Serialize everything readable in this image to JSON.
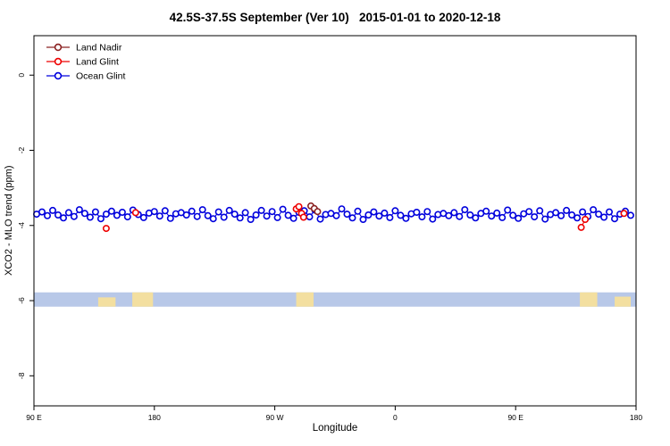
{
  "chart_data": {
    "type": "line",
    "title": "42.5S-37.5S September (Ver 10)   2015-01-01 to 2020-12-18",
    "xlabel": "Longitude",
    "ylabel": "XCO2 - MLO trend (ppm)",
    "xlim": [
      90,
      540
    ],
    "ylim": [
      -8.8,
      1.05
    ],
    "grid": false,
    "legend_position": "top-left",
    "xticks": [
      {
        "v": 90,
        "label": "90 E"
      },
      {
        "v": 180,
        "label": "180"
      },
      {
        "v": 270,
        "label": "90 W"
      },
      {
        "v": 360,
        "label": "0"
      },
      {
        "v": 450,
        "label": "90 E"
      },
      {
        "v": 540,
        "label": "180"
      }
    ],
    "yticks": [
      {
        "v": 0,
        "label": "0"
      },
      {
        "v": -2,
        "label": "-2"
      },
      {
        "v": -4,
        "label": "-4"
      },
      {
        "v": -6,
        "label": "-6"
      },
      {
        "v": -8,
        "label": "-8"
      }
    ],
    "series": [
      {
        "name": "Land Nadir",
        "color": "#8b2323",
        "points": [
          [
            297,
            -3.48
          ],
          [
            299.5,
            -3.55
          ],
          [
            302,
            -3.63
          ]
        ]
      },
      {
        "name": "Land Glint",
        "color": "#ee0000",
        "points": [
          [
            144,
            -4.08
          ],
          [
            166,
            -3.66
          ],
          [
            286,
            -3.56
          ],
          [
            288,
            -3.5
          ],
          [
            290,
            -3.68
          ],
          [
            291.5,
            -3.78
          ],
          [
            499,
            -4.05
          ],
          [
            502,
            -3.84
          ],
          [
            531,
            -3.68
          ]
        ]
      },
      {
        "name": "Ocean Glint",
        "color": "#0000dd",
        "points": [
          [
            92,
            -3.7
          ],
          [
            96,
            -3.64
          ],
          [
            100,
            -3.74
          ],
          [
            104,
            -3.6
          ],
          [
            108,
            -3.72
          ],
          [
            112,
            -3.8
          ],
          [
            116,
            -3.66
          ],
          [
            120,
            -3.76
          ],
          [
            124,
            -3.58
          ],
          [
            128,
            -3.68
          ],
          [
            132,
            -3.78
          ],
          [
            136,
            -3.64
          ],
          [
            140,
            -3.82
          ],
          [
            144,
            -3.7
          ],
          [
            148,
            -3.62
          ],
          [
            152,
            -3.73
          ],
          [
            156,
            -3.65
          ],
          [
            160,
            -3.77
          ],
          [
            164,
            -3.59
          ],
          [
            168,
            -3.71
          ],
          [
            172,
            -3.79
          ],
          [
            176,
            -3.67
          ],
          [
            180,
            -3.63
          ],
          [
            184,
            -3.75
          ],
          [
            188,
            -3.61
          ],
          [
            192,
            -3.81
          ],
          [
            196,
            -3.69
          ],
          [
            200,
            -3.66
          ],
          [
            204,
            -3.72
          ],
          [
            208,
            -3.62
          ],
          [
            212,
            -3.76
          ],
          [
            216,
            -3.58
          ],
          [
            220,
            -3.74
          ],
          [
            224,
            -3.82
          ],
          [
            228,
            -3.64
          ],
          [
            232,
            -3.78
          ],
          [
            236,
            -3.6
          ],
          [
            240,
            -3.7
          ],
          [
            244,
            -3.8
          ],
          [
            248,
            -3.66
          ],
          [
            252,
            -3.84
          ],
          [
            256,
            -3.72
          ],
          [
            260,
            -3.6
          ],
          [
            264,
            -3.75
          ],
          [
            268,
            -3.63
          ],
          [
            272,
            -3.79
          ],
          [
            276,
            -3.57
          ],
          [
            280,
            -3.73
          ],
          [
            284,
            -3.81
          ],
          [
            288,
            -3.65
          ],
          [
            292,
            -3.61
          ],
          [
            296,
            -3.77
          ],
          [
            300,
            -3.59
          ],
          [
            304,
            -3.83
          ],
          [
            308,
            -3.71
          ],
          [
            312,
            -3.68
          ],
          [
            316,
            -3.74
          ],
          [
            320,
            -3.56
          ],
          [
            324,
            -3.7
          ],
          [
            328,
            -3.8
          ],
          [
            332,
            -3.62
          ],
          [
            336,
            -3.84
          ],
          [
            340,
            -3.72
          ],
          [
            344,
            -3.64
          ],
          [
            348,
            -3.75
          ],
          [
            352,
            -3.67
          ],
          [
            356,
            -3.79
          ],
          [
            360,
            -3.61
          ],
          [
            364,
            -3.73
          ],
          [
            368,
            -3.81
          ],
          [
            372,
            -3.69
          ],
          [
            376,
            -3.65
          ],
          [
            380,
            -3.77
          ],
          [
            384,
            -3.63
          ],
          [
            388,
            -3.83
          ],
          [
            392,
            -3.71
          ],
          [
            396,
            -3.68
          ],
          [
            400,
            -3.74
          ],
          [
            404,
            -3.66
          ],
          [
            408,
            -3.76
          ],
          [
            412,
            -3.58
          ],
          [
            416,
            -3.72
          ],
          [
            420,
            -3.8
          ],
          [
            424,
            -3.68
          ],
          [
            428,
            -3.62
          ],
          [
            432,
            -3.75
          ],
          [
            436,
            -3.67
          ],
          [
            440,
            -3.79
          ],
          [
            444,
            -3.59
          ],
          [
            448,
            -3.73
          ],
          [
            452,
            -3.81
          ],
          [
            456,
            -3.69
          ],
          [
            460,
            -3.63
          ],
          [
            464,
            -3.77
          ],
          [
            468,
            -3.61
          ],
          [
            472,
            -3.83
          ],
          [
            476,
            -3.71
          ],
          [
            480,
            -3.66
          ],
          [
            484,
            -3.74
          ],
          [
            488,
            -3.6
          ],
          [
            492,
            -3.72
          ],
          [
            496,
            -3.8
          ],
          [
            500,
            -3.64
          ],
          [
            504,
            -3.76
          ],
          [
            508,
            -3.58
          ],
          [
            512,
            -3.7
          ],
          [
            516,
            -3.78
          ],
          [
            520,
            -3.64
          ],
          [
            524,
            -3.82
          ],
          [
            528,
            -3.7
          ],
          [
            532,
            -3.62
          ],
          [
            536,
            -3.73
          ]
        ]
      }
    ],
    "surface_strip": {
      "y_top": -5.78,
      "y_bottom": -6.16,
      "ocean_color": "#b8c8e8",
      "land_color": "#f3dfa0",
      "land_segments": [
        {
          "from": 138,
          "to": 151,
          "top_frac": 0.35
        },
        {
          "from": 163.5,
          "to": 179,
          "top_frac": 0
        },
        {
          "from": 286,
          "to": 299,
          "top_frac": 0
        },
        {
          "from": 498,
          "to": 511,
          "top_frac": 0
        },
        {
          "from": 524,
          "to": 536,
          "top_frac": 0.3
        }
      ]
    }
  }
}
